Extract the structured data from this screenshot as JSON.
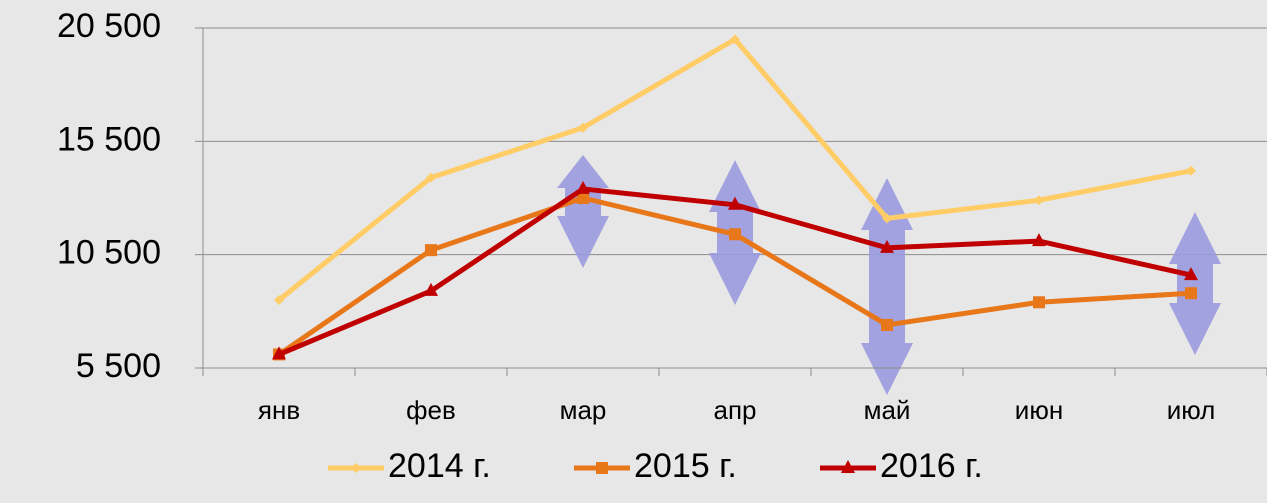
{
  "chart_data": {
    "type": "line",
    "categories": [
      "янв",
      "фев",
      "мар",
      "апр",
      "май",
      "июн",
      "июл"
    ],
    "series": [
      {
        "name": "2014 г.",
        "color": "#ffcc66",
        "marker": "diamond",
        "values": [
          8500,
          13900,
          16100,
          20000,
          12100,
          12900,
          14200
        ]
      },
      {
        "name": "2015 г.",
        "color": "#e8771a",
        "marker": "square",
        "values": [
          6100,
          10700,
          13000,
          11400,
          7400,
          8400,
          8800
        ]
      },
      {
        "name": "2016 г.",
        "color": "#c00000",
        "marker": "triangle",
        "values": [
          6100,
          8900,
          13400,
          12700,
          10800,
          11100,
          9600
        ]
      }
    ],
    "ylim": [
      5500,
      20500
    ],
    "yticks": [
      {
        "value": 5500,
        "label": "5 500"
      },
      {
        "value": 10500,
        "label": "10 500"
      },
      {
        "value": 15500,
        "label": "15 500"
      },
      {
        "value": 20500,
        "label": "20 500"
      }
    ],
    "grid": true,
    "legend": "bottom"
  }
}
